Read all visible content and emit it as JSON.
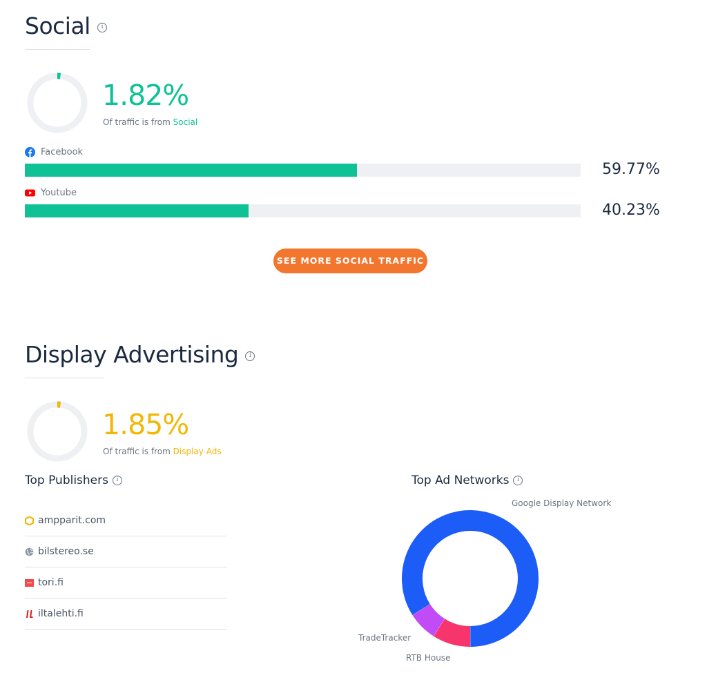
{
  "social": {
    "title": "Social",
    "percentage": "1.82%",
    "ring_fraction": 0.0182,
    "note_prefix": "Of traffic is from",
    "note_highlight": "Social",
    "accent_color": "#0ec295",
    "platforms": [
      {
        "name": "Facebook",
        "icon": "facebook-icon",
        "percentage": "59.77%",
        "value": 0.5977
      },
      {
        "name": "Youtube",
        "icon": "youtube-icon",
        "percentage": "40.23%",
        "value": 0.4023
      }
    ],
    "button_label": "SEE MORE SOCIAL TRAFFIC"
  },
  "display": {
    "title": "Display Advertising",
    "percentage": "1.85%",
    "ring_fraction": 0.0185,
    "note_prefix": "Of traffic is from",
    "note_highlight": "Display Ads",
    "accent_color": "#f2b705",
    "publishers_title": "Top Publishers",
    "publishers": [
      {
        "name": "ampparit.com",
        "icon": "ampparit-icon"
      },
      {
        "name": "bilstereo.se",
        "icon": "globe-icon"
      },
      {
        "name": "tori.fi",
        "icon": "tori-icon"
      },
      {
        "name": "iltalehti.fi",
        "icon": "iltalehti-icon"
      }
    ],
    "networks_title": "Top Ad Networks",
    "networks": [
      {
        "name": "Google Display Network",
        "value": 0.84,
        "color": "#1c5cf7"
      },
      {
        "name": "RTB House",
        "value": 0.09,
        "color": "#f7346b"
      },
      {
        "name": "TradeTracker",
        "value": 0.07,
        "color": "#c14bf7"
      }
    ]
  }
}
